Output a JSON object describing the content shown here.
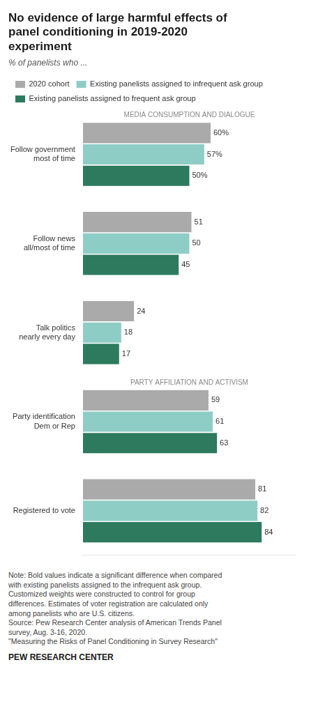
{
  "chart_data": {
    "type": "bar",
    "orientation": "horizontal",
    "title": "No evidence of large harmful effects of\npanel conditioning in 2019-2020\nexperiment",
    "subtitle": "% of panelists who ...",
    "categories": [
      "Follow government\nmost of time",
      "Follow news\nall/most of time",
      "Talk politics\nnearly every day",
      "Party identification\nDem or Rep",
      "Registered to vote"
    ],
    "series": [
      {
        "name": "2020 cohort",
        "color": "#aaaaaa",
        "values": [
          60,
          51,
          24,
          59,
          81
        ],
        "value_labels": [
          "60%",
          "51",
          "24",
          "59",
          "81"
        ]
      },
      {
        "name": "Existing panelists assigned to infrequent ask group",
        "color": "#8ecdc5",
        "values": [
          57,
          50,
          18,
          61,
          82
        ],
        "value_labels": [
          "57%",
          "50",
          "18",
          "61",
          "82"
        ]
      },
      {
        "name": "Existing panelists assigned to frequent ask group",
        "color": "#2d7a5e",
        "values": [
          50,
          45,
          17,
          63,
          84
        ],
        "value_labels": [
          "50%",
          "45",
          "17",
          "63",
          "84"
        ]
      }
    ],
    "xlim": [
      0,
      100
    ],
    "grid": false,
    "tick_labels": "y",
    "data_labels": true,
    "legend": "top",
    "annotations": [
      {
        "text": "MEDIA CONSUMPTION AND DIALOGUE",
        "category": "Follow government\nmost of time"
      },
      {
        "text": "PARTY AFFILIATION AND ACTIVISM",
        "category": "Party identification\nDem or Rep"
      }
    ],
    "note": "Note: Bold values indicate a significant difference when compared\nwith existing panelists assigned to the infrequent ask group.\nCustomized weights were constructed to control for group\ndifferences. Estimates of voter registration are calculated only\namong panelists who are U.S. citizens.\nSource: Pew Research Center analysis of American Trends Panel\nsurvey, Aug. 3-16, 2020.\n\"Measuring the Risks of Panel Conditioning in Survey Research\"",
    "footer": "PEW RESEARCH CENTER"
  }
}
